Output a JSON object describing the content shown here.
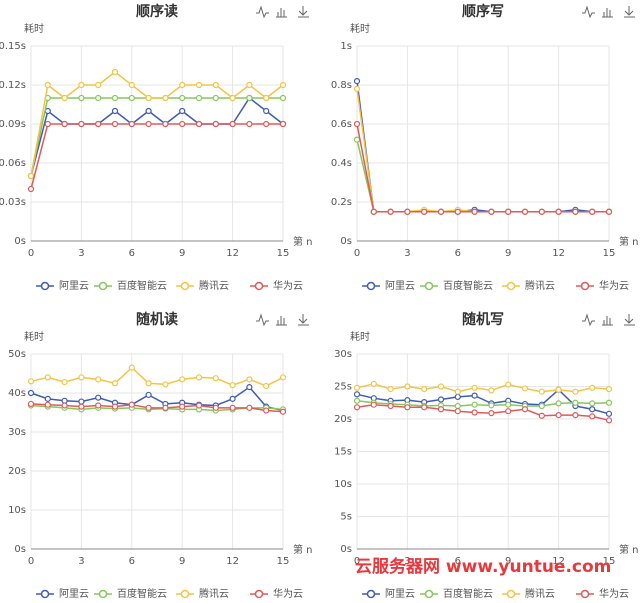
{
  "chart_data": [
    {
      "type": "line",
      "title": "顺序读",
      "y_axis_label": "耗时",
      "x_axis_label": "第 n",
      "grid": true,
      "x": [
        0,
        1,
        2,
        3,
        4,
        5,
        6,
        7,
        8,
        9,
        10,
        11,
        12,
        13,
        14,
        15
      ],
      "xlim": [
        0,
        15
      ],
      "xticks": [
        0,
        3,
        6,
        9,
        12,
        15
      ],
      "ylim": [
        0,
        0.15
      ],
      "yticks": [
        {
          "value": 0,
          "label": "0s"
        },
        {
          "value": 0.03,
          "label": "0.03s"
        },
        {
          "value": 0.06,
          "label": "0.06s"
        },
        {
          "value": 0.09,
          "label": "0.09s"
        },
        {
          "value": 0.12,
          "label": "0.12s"
        },
        {
          "value": 0.15,
          "label": "0.15s"
        }
      ],
      "series": [
        {
          "name": "阿里云",
          "color": "#3f5bb3",
          "values": [
            0.05,
            0.1,
            0.09,
            0.09,
            0.09,
            0.1,
            0.09,
            0.1,
            0.09,
            0.1,
            0.09,
            0.09,
            0.09,
            0.11,
            0.1,
            0.09
          ]
        },
        {
          "name": "百度智能云",
          "color": "#86c75e",
          "values": [
            0.05,
            0.11,
            0.11,
            0.11,
            0.11,
            0.11,
            0.11,
            0.11,
            0.11,
            0.11,
            0.11,
            0.11,
            0.11,
            0.11,
            0.11,
            0.11
          ]
        },
        {
          "name": "腾讯云",
          "color": "#f5c444",
          "values": [
            0.05,
            0.12,
            0.11,
            0.12,
            0.12,
            0.13,
            0.12,
            0.11,
            0.11,
            0.12,
            0.12,
            0.12,
            0.11,
            0.12,
            0.11,
            0.12
          ]
        },
        {
          "name": "华为云",
          "color": "#e05a5a",
          "values": [
            0.04,
            0.09,
            0.09,
            0.09,
            0.09,
            0.09,
            0.09,
            0.09,
            0.09,
            0.09,
            0.09,
            0.09,
            0.09,
            0.09,
            0.09,
            0.09
          ]
        }
      ]
    },
    {
      "type": "line",
      "title": "顺序写",
      "y_axis_label": "耗时",
      "x_axis_label": "第 n",
      "grid": true,
      "x": [
        0,
        1,
        2,
        3,
        4,
        5,
        6,
        7,
        8,
        9,
        10,
        11,
        12,
        13,
        14,
        15
      ],
      "xlim": [
        0,
        15
      ],
      "xticks": [
        0,
        3,
        6,
        9,
        12,
        15
      ],
      "ylim": [
        0,
        1
      ],
      "yticks": [
        {
          "value": 0,
          "label": "0s"
        },
        {
          "value": 0.2,
          "label": "0.2s"
        },
        {
          "value": 0.4,
          "label": "0.4s"
        },
        {
          "value": 0.6,
          "label": "0.6s"
        },
        {
          "value": 0.8,
          "label": "0.8s"
        },
        {
          "value": 1,
          "label": "1s"
        }
      ],
      "series": [
        {
          "name": "阿里云",
          "color": "#3f5bb3",
          "values": [
            0.82,
            0.15,
            0.15,
            0.15,
            0.15,
            0.15,
            0.15,
            0.16,
            0.15,
            0.15,
            0.15,
            0.15,
            0.15,
            0.16,
            0.15,
            0.15
          ]
        },
        {
          "name": "百度智能云",
          "color": "#86c75e",
          "values": [
            0.52,
            0.15,
            0.15,
            0.15,
            0.15,
            0.15,
            0.15,
            0.15,
            0.15,
            0.15,
            0.15,
            0.15,
            0.15,
            0.15,
            0.15,
            0.15
          ]
        },
        {
          "name": "腾讯云",
          "color": "#f5c444",
          "values": [
            0.78,
            0.15,
            0.15,
            0.15,
            0.16,
            0.15,
            0.16,
            0.15,
            0.15,
            0.15,
            0.15,
            0.15,
            0.15,
            0.15,
            0.15,
            0.15
          ]
        },
        {
          "name": "华为云",
          "color": "#e05a5a",
          "values": [
            0.6,
            0.15,
            0.15,
            0.15,
            0.15,
            0.15,
            0.15,
            0.15,
            0.15,
            0.15,
            0.15,
            0.15,
            0.15,
            0.15,
            0.15,
            0.15
          ]
        }
      ]
    },
    {
      "type": "line",
      "title": "随机读",
      "y_axis_label": "耗时",
      "x_axis_label": "第 n",
      "grid": true,
      "x": [
        0,
        1,
        2,
        3,
        4,
        5,
        6,
        7,
        8,
        9,
        10,
        11,
        12,
        13,
        14,
        15
      ],
      "xlim": [
        0,
        15
      ],
      "xticks": [
        0,
        3,
        6,
        9,
        12,
        15
      ],
      "ylim": [
        0,
        50
      ],
      "yticks": [
        {
          "value": 0,
          "label": "0s"
        },
        {
          "value": 10,
          "label": "10s"
        },
        {
          "value": 20,
          "label": "20s"
        },
        {
          "value": 30,
          "label": "30s"
        },
        {
          "value": 40,
          "label": "40s"
        },
        {
          "value": 50,
          "label": "50s"
        }
      ],
      "series": [
        {
          "name": "阿里云",
          "color": "#3f5bb3",
          "values": [
            40,
            38.5,
            38,
            37.8,
            38.8,
            37.5,
            37,
            39.5,
            37.2,
            37.5,
            37,
            36.8,
            38.5,
            41.5,
            36.5,
            35.5
          ]
        },
        {
          "name": "百度智能云",
          "color": "#86c75e",
          "values": [
            36.8,
            36.5,
            36.2,
            35.8,
            36.2,
            36,
            36.2,
            35.8,
            36,
            35.8,
            35.8,
            35.5,
            35.8,
            36.2,
            36.2,
            35.8
          ]
        },
        {
          "name": "腾讯云",
          "color": "#f5c444",
          "values": [
            43,
            44,
            42.8,
            44,
            43.5,
            42.5,
            46.5,
            42.5,
            42.2,
            43.5,
            44,
            43.8,
            42,
            43.5,
            41.8,
            44
          ]
        },
        {
          "name": "华为云",
          "color": "#e05a5a",
          "values": [
            37.2,
            37,
            36.8,
            36.5,
            36.8,
            36.5,
            37,
            36.2,
            36.2,
            36.5,
            36.8,
            36.2,
            36.2,
            36.2,
            35.5,
            35.2
          ]
        }
      ]
    },
    {
      "type": "line",
      "title": "随机写",
      "y_axis_label": "耗时",
      "x_axis_label": "第 n",
      "grid": true,
      "x": [
        0,
        1,
        2,
        3,
        4,
        5,
        6,
        7,
        8,
        9,
        10,
        11,
        12,
        13,
        14,
        15
      ],
      "xlim": [
        0,
        15
      ],
      "xticks": [
        0,
        3,
        6,
        9,
        12,
        15
      ],
      "ylim": [
        0,
        30
      ],
      "yticks": [
        {
          "value": 0,
          "label": "0s"
        },
        {
          "value": 5,
          "label": "5s"
        },
        {
          "value": 10,
          "label": "10s"
        },
        {
          "value": 15,
          "label": "15s"
        },
        {
          "value": 20,
          "label": "20s"
        },
        {
          "value": 25,
          "label": "25s"
        },
        {
          "value": 30,
          "label": "30s"
        }
      ],
      "series": [
        {
          "name": "阿里云",
          "color": "#3f5bb3",
          "values": [
            23.8,
            23.2,
            22.8,
            22.9,
            22.6,
            23,
            23.4,
            23.6,
            22.4,
            22.8,
            22.3,
            22.2,
            24.5,
            22,
            21.5,
            20.8
          ]
        },
        {
          "name": "百度智能云",
          "color": "#86c75e",
          "values": [
            22.8,
            22.5,
            22.3,
            22.2,
            22,
            22.1,
            22,
            22.2,
            22.1,
            22.2,
            22,
            22,
            22.4,
            22.5,
            22.4,
            22.5
          ]
        },
        {
          "name": "腾讯云",
          "color": "#f5c444",
          "values": [
            24.8,
            25.4,
            24.6,
            25,
            24.6,
            25,
            24.2,
            24.8,
            24.4,
            25.3,
            24.7,
            24.2,
            24.5,
            24.2,
            24.8,
            24.6
          ]
        },
        {
          "name": "华为云",
          "color": "#e05a5a",
          "values": [
            21.8,
            22.2,
            22,
            21.8,
            21.8,
            21.5,
            21.2,
            21,
            20.9,
            21.2,
            21.5,
            20.5,
            20.6,
            20.6,
            20.4,
            19.8
          ]
        }
      ]
    }
  ],
  "watermark": "云服务器网 www.yuntue.com"
}
